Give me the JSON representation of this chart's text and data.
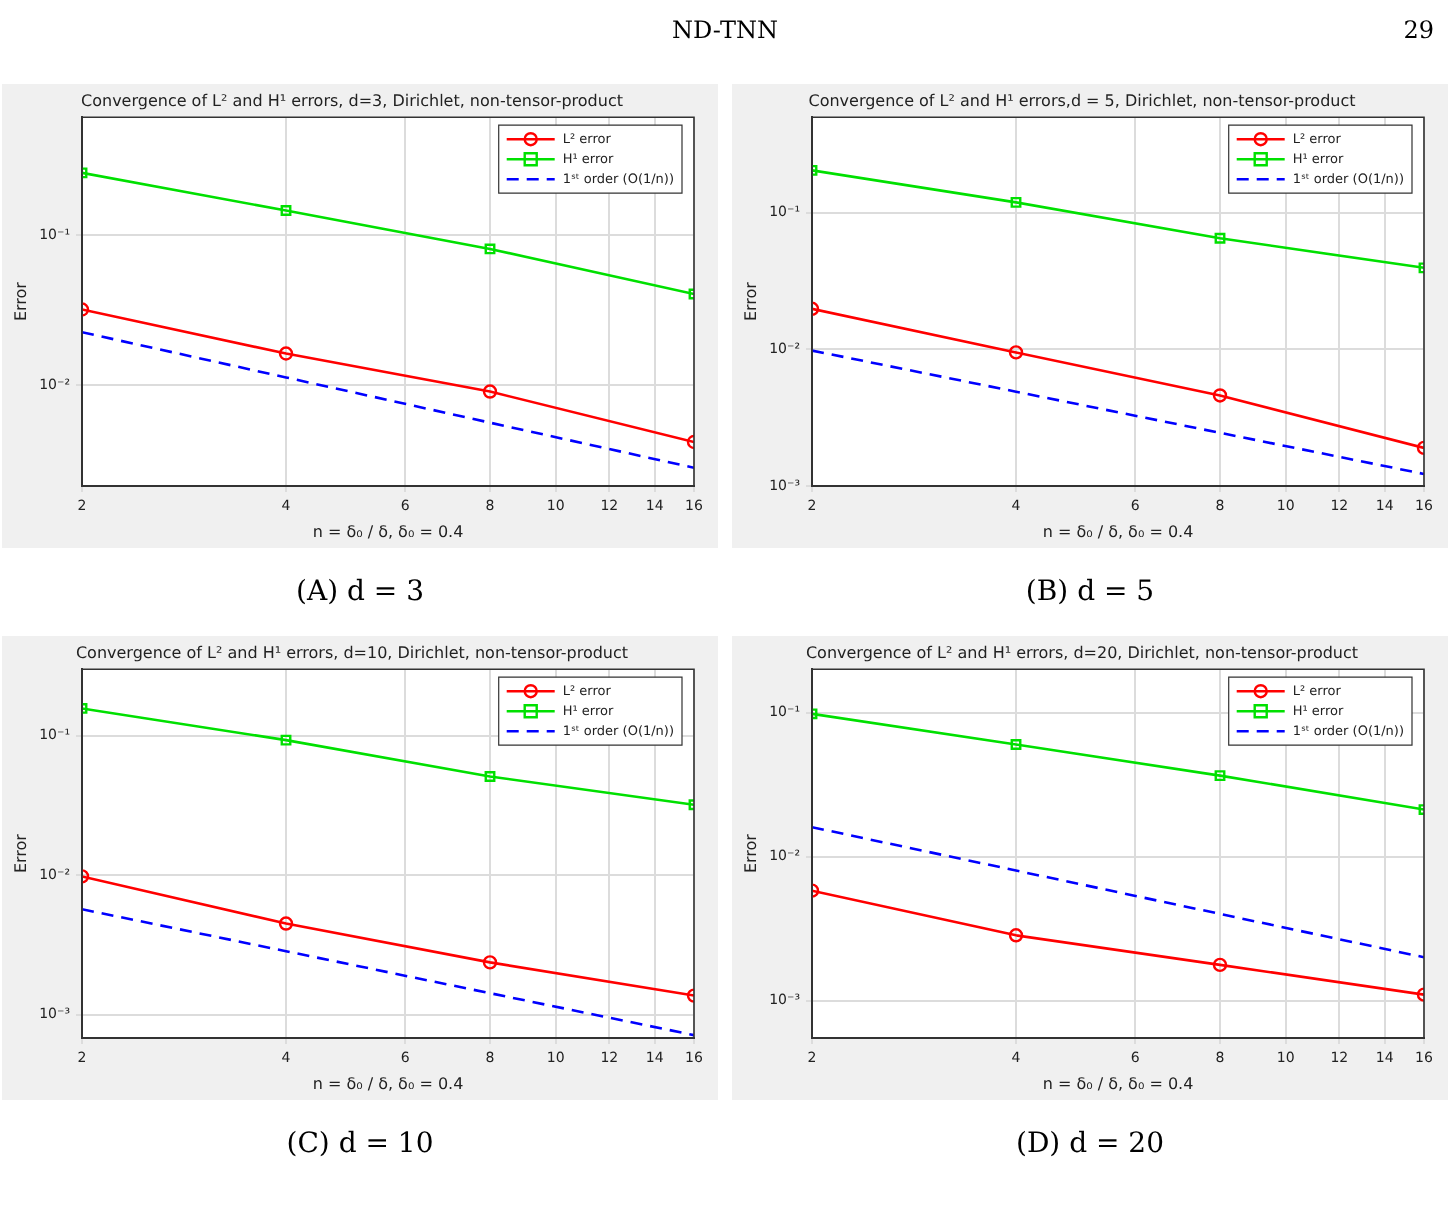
{
  "chart_data": [
    {
      "type": "line",
      "title": "Convergence of L² and H¹ errors, d=3, Dirichlet, non-tensor-product",
      "xlabel": "n = δ₀ / δ, δ₀ = 0.4",
      "ylabel": "Error",
      "annotations": [
        "(A) d = 3",
        "ND-TNN",
        "29"
      ],
      "log": "xy",
      "grid": true,
      "legend": "top right",
      "xlim": [
        2,
        16
      ],
      "xticks": [
        2,
        4,
        6,
        8,
        10,
        12,
        14,
        16
      ],
      "ylim": [
        0.00214,
        0.61
      ],
      "yticks": [
        {
          "value": 0.01,
          "label": "10⁻²"
        },
        {
          "value": 0.1,
          "label": "10⁻¹"
        }
      ],
      "x": [
        2,
        4,
        8,
        16
      ],
      "series": [
        {
          "name": "L² error",
          "color": "#ff0000",
          "marker": "circle",
          "line_style": "solid",
          "values": [
            0.032,
            0.0163,
            0.0091,
            0.0042
          ]
        },
        {
          "name": "H¹ error",
          "color": "#00e000",
          "marker": "square",
          "line_style": "solid",
          "values": [
            0.26,
            0.146,
            0.081,
            0.0406
          ]
        },
        {
          "name": "1ˢᵗ order (O(1/n))",
          "color": "#0000ff",
          "marker": "none",
          "line_style": "dashed",
          "values": [
            0.0226,
            0.0113,
            0.00565,
            0.00283
          ]
        }
      ]
    },
    {
      "type": "line",
      "title": "Convergence of L² and H¹ errors,d = 5, Dirichlet, non-tensor-product",
      "xlabel": "n = δ₀ / δ, δ₀ = 0.4",
      "ylabel": "Error",
      "annotations": [
        "(B) d = 5"
      ],
      "log": "xy",
      "grid": true,
      "legend": "top right",
      "xlim": [
        2,
        16
      ],
      "xticks": [
        2,
        4,
        6,
        8,
        10,
        12,
        14,
        16
      ],
      "ylim": [
        0.001,
        0.5
      ],
      "yticks": [
        {
          "value": 0.001,
          "label": "10⁻³"
        },
        {
          "value": 0.01,
          "label": "10⁻²"
        },
        {
          "value": 0.1,
          "label": "10⁻¹"
        }
      ],
      "x": [
        2,
        4,
        8,
        16
      ],
      "series": [
        {
          "name": "L² error",
          "color": "#ff0000",
          "marker": "circle",
          "line_style": "solid",
          "values": [
            0.0198,
            0.0095,
            0.0046,
            0.0019
          ]
        },
        {
          "name": "H¹ error",
          "color": "#00e000",
          "marker": "square",
          "line_style": "solid",
          "values": [
            0.204,
            0.119,
            0.065,
            0.0395
          ]
        },
        {
          "name": "1ˢᵗ order (O(1/n))",
          "color": "#0000ff",
          "marker": "none",
          "line_style": "dashed",
          "values": [
            0.0098,
            0.0049,
            0.00245,
            0.001225
          ]
        }
      ]
    },
    {
      "type": "line",
      "title": "Convergence of L² and H¹ errors, d=10, Dirichlet, non-tensor-product",
      "xlabel": "n = δ₀ / δ, δ₀ = 0.4",
      "ylabel": "Error",
      "annotations": [
        "(C) d = 10"
      ],
      "log": "xy",
      "grid": true,
      "legend": "top right",
      "xlim": [
        2,
        16
      ],
      "xticks": [
        2,
        4,
        6,
        8,
        10,
        12,
        14,
        16
      ],
      "ylim": [
        0.00068,
        0.3
      ],
      "yticks": [
        {
          "value": 0.001,
          "label": "10⁻³"
        },
        {
          "value": 0.01,
          "label": "10⁻²"
        },
        {
          "value": 0.1,
          "label": "10⁻¹"
        }
      ],
      "x": [
        2,
        4,
        8,
        16
      ],
      "series": [
        {
          "name": "L² error",
          "color": "#ff0000",
          "marker": "circle",
          "line_style": "solid",
          "values": [
            0.0098,
            0.0045,
            0.00237,
            0.00137
          ]
        },
        {
          "name": "H¹ error",
          "color": "#00e000",
          "marker": "square",
          "line_style": "solid",
          "values": [
            0.157,
            0.093,
            0.051,
            0.032
          ]
        },
        {
          "name": "1ˢᵗ order (O(1/n))",
          "color": "#0000ff",
          "marker": "none",
          "line_style": "dashed",
          "values": [
            0.0057,
            0.00285,
            0.001425,
            0.000713
          ]
        }
      ]
    },
    {
      "type": "line",
      "title": "Convergence of L² and H¹ errors, d=20, Dirichlet, non-tensor-product",
      "xlabel": "n = δ₀ / δ, δ₀ = 0.4",
      "ylabel": "Error",
      "annotations": [
        "(D) d = 20"
      ],
      "log": "xy",
      "grid": true,
      "legend": "top right",
      "xlim": [
        2,
        16
      ],
      "xticks": [
        2,
        4,
        6,
        8,
        10,
        12,
        14,
        16
      ],
      "ylim": [
        0.00055,
        0.2
      ],
      "yticks": [
        {
          "value": 0.001,
          "label": "10⁻³"
        },
        {
          "value": 0.01,
          "label": "10⁻²"
        },
        {
          "value": 0.1,
          "label": "10⁻¹"
        }
      ],
      "x": [
        2,
        4,
        8,
        16
      ],
      "series": [
        {
          "name": "L² error",
          "color": "#ff0000",
          "marker": "circle",
          "line_style": "solid",
          "values": [
            0.0058,
            0.00284,
            0.00177,
            0.0011
          ]
        },
        {
          "name": "H¹ error",
          "color": "#00e000",
          "marker": "square",
          "line_style": "solid",
          "values": [
            0.098,
            0.06,
            0.0365,
            0.0212
          ]
        },
        {
          "name": "1ˢᵗ order (O(1/n))",
          "color": "#0000ff",
          "marker": "none",
          "line_style": "dashed",
          "values": [
            0.016,
            0.008,
            0.004,
            0.002
          ]
        }
      ]
    }
  ]
}
